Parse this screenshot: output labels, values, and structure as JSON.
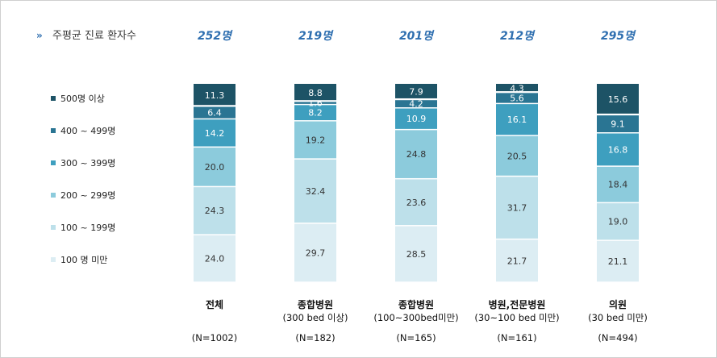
{
  "header": {
    "arrow_glyph": "»",
    "title": "주평균 진료 환자수"
  },
  "chart_data": {
    "type": "bar",
    "stacked": true,
    "title": "주평균 진료 환자수",
    "categories": [
      {
        "name": "전체",
        "sub": "",
        "n": "(N=1002)",
        "total": "252명"
      },
      {
        "name": "종합병원",
        "sub": "(300 bed 이상)",
        "n": "(N=182)",
        "total": "219명"
      },
      {
        "name": "종합병원",
        "sub": "(100~300bed미만)",
        "n": "(N=165)",
        "total": "201명"
      },
      {
        "name": "병원,전문병원",
        "sub": "(30~100 bed 미만)",
        "n": "(N=161)",
        "total": "212명"
      },
      {
        "name": "의원",
        "sub": "(30 bed 미만)",
        "n": "(N=494)",
        "total": "295명"
      }
    ],
    "series": [
      {
        "name": "100 명 미만",
        "color": "#dcedf3",
        "text_color": "#333333",
        "values": [
          24.0,
          29.7,
          28.5,
          21.7,
          21.1
        ]
      },
      {
        "name": "100 ~ 199명",
        "color": "#bde0ea",
        "text_color": "#333333",
        "values": [
          24.3,
          32.4,
          23.6,
          31.7,
          19.0
        ]
      },
      {
        "name": "200 ~ 299명",
        "color": "#8ccbdc",
        "text_color": "#333333",
        "values": [
          20.0,
          19.2,
          24.8,
          20.5,
          18.4
        ]
      },
      {
        "name": "300 ~ 399명",
        "color": "#3e9fbf",
        "text_color": "#ffffff",
        "values": [
          14.2,
          8.2,
          10.9,
          16.1,
          16.8
        ]
      },
      {
        "name": "400 ~ 499명",
        "color": "#2a7593",
        "text_color": "#ffffff",
        "values": [
          6.4,
          1.6,
          4.2,
          5.6,
          9.1
        ]
      },
      {
        "name": "500명 이상",
        "color": "#1d5366",
        "text_color": "#ffffff",
        "values": [
          11.3,
          8.8,
          7.9,
          4.3,
          15.6
        ]
      }
    ],
    "ylim": [
      0,
      100
    ],
    "value_format": "one decimal",
    "legend_position": "left"
  }
}
